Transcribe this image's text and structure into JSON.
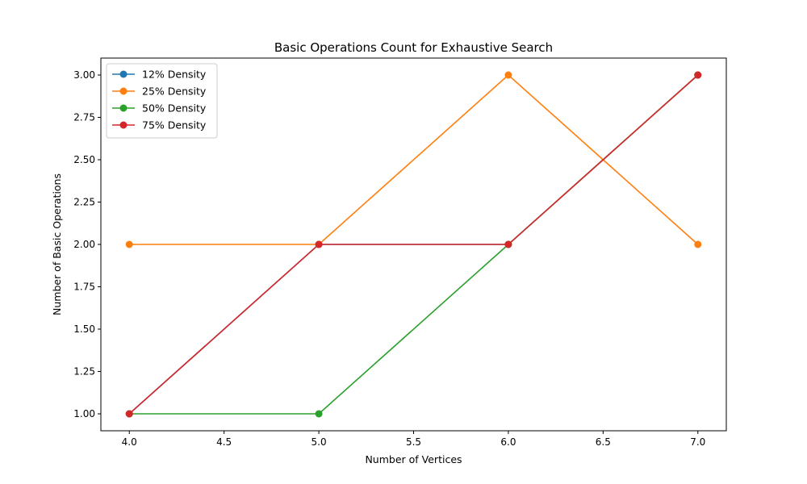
{
  "chart_data": {
    "type": "line",
    "title": "Basic Operations Count for Exhaustive Search",
    "xlabel": "Number of Vertices",
    "ylabel": "Number of Basic Operations",
    "xlim": [
      3.85,
      7.15
    ],
    "ylim": [
      0.9,
      3.1
    ],
    "xticks": [
      4.0,
      4.5,
      5.0,
      5.5,
      6.0,
      6.5,
      7.0
    ],
    "yticks": [
      1.0,
      1.25,
      1.5,
      1.75,
      2.0,
      2.25,
      2.5,
      2.75,
      3.0
    ],
    "xtick_labels": [
      "4.0",
      "4.5",
      "5.0",
      "5.5",
      "6.0",
      "6.5",
      "7.0"
    ],
    "ytick_labels": [
      "1.00",
      "1.25",
      "1.50",
      "1.75",
      "2.00",
      "2.25",
      "2.50",
      "2.75",
      "3.00"
    ],
    "x": [
      4,
      5,
      6,
      7
    ],
    "grid": false,
    "legend_position": "upper left",
    "marker": "circle",
    "series": [
      {
        "name": "12% Density",
        "color": "#1f77b4",
        "values": [
          1,
          2,
          2,
          3
        ]
      },
      {
        "name": "25% Density",
        "color": "#ff7f0e",
        "values": [
          2,
          2,
          3,
          2
        ]
      },
      {
        "name": "50% Density",
        "color": "#2ca02c",
        "values": [
          1,
          1,
          2,
          3
        ]
      },
      {
        "name": "75% Density",
        "color": "#d62728",
        "values": [
          1,
          2,
          2,
          3
        ]
      }
    ]
  }
}
